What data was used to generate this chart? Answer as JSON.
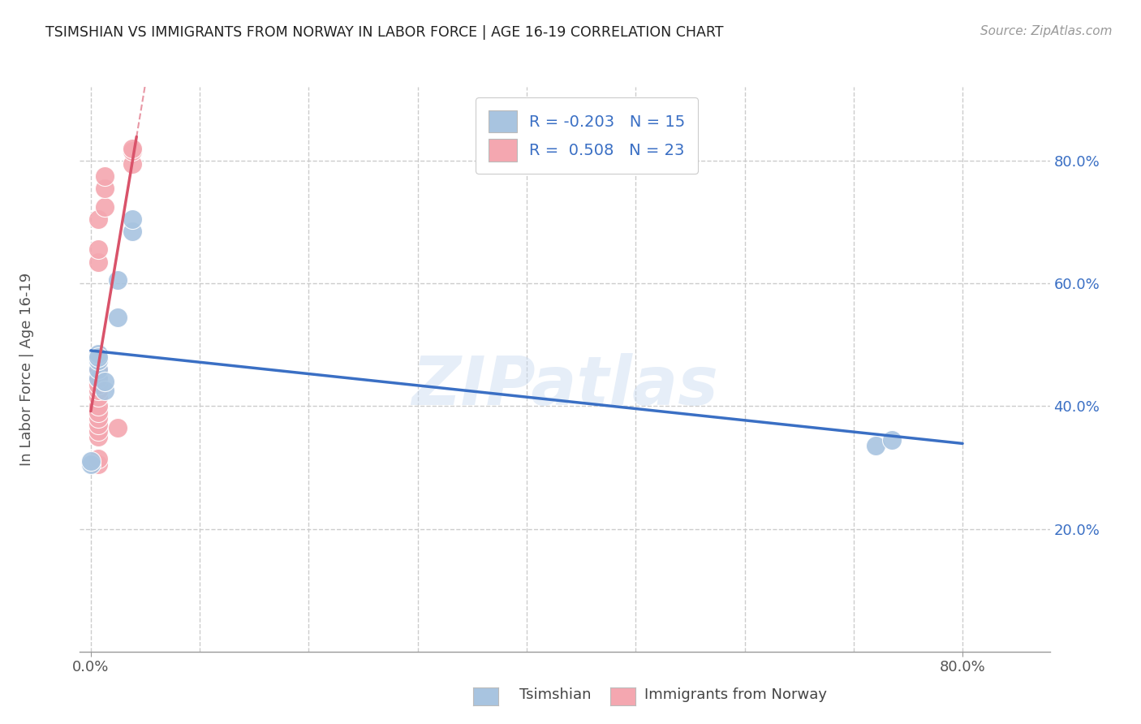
{
  "title": "TSIMSHIAN VS IMMIGRANTS FROM NORWAY IN LABOR FORCE | AGE 16-19 CORRELATION CHART",
  "source": "Source: ZipAtlas.com",
  "ylabel": "In Labor Force | Age 16-19",
  "x_tick_labels": [
    "0.0%",
    "80.0%"
  ],
  "x_tick_vals": [
    0.0,
    0.8
  ],
  "y_tick_labels_right": [
    "80.0%",
    "60.0%",
    "40.0%",
    "20.0%"
  ],
  "y_tick_vals_right": [
    0.8,
    0.6,
    0.4,
    0.2
  ],
  "xlim": [
    -0.01,
    0.88
  ],
  "ylim": [
    0.0,
    0.92
  ],
  "tsimshian_color": "#a8c4e0",
  "norway_color": "#f4a7b0",
  "tsimshian_line_color": "#3a6fc4",
  "norway_line_color": "#d9536a",
  "legend_R_tsimshian": "-0.203",
  "legend_N_tsimshian": "15",
  "legend_R_norway": "0.508",
  "legend_N_norway": "23",
  "tsimshian_x": [
    0.0,
    0.0,
    0.007,
    0.007,
    0.007,
    0.007,
    0.007,
    0.013,
    0.013,
    0.025,
    0.025,
    0.038,
    0.038,
    0.72,
    0.735
  ],
  "tsimshian_y": [
    0.305,
    0.31,
    0.445,
    0.46,
    0.475,
    0.485,
    0.48,
    0.425,
    0.44,
    0.605,
    0.545,
    0.685,
    0.705,
    0.335,
    0.345
  ],
  "norway_x": [
    0.007,
    0.007,
    0.007,
    0.007,
    0.007,
    0.007,
    0.007,
    0.007,
    0.007,
    0.007,
    0.007,
    0.007,
    0.007,
    0.007,
    0.007,
    0.007,
    0.013,
    0.013,
    0.013,
    0.025,
    0.038,
    0.038,
    0.038
  ],
  "norway_y": [
    0.305,
    0.315,
    0.35,
    0.36,
    0.37,
    0.38,
    0.39,
    0.4,
    0.415,
    0.425,
    0.435,
    0.445,
    0.46,
    0.635,
    0.655,
    0.705,
    0.725,
    0.755,
    0.775,
    0.365,
    0.795,
    0.815,
    0.82
  ],
  "watermark": "ZIPatlas",
  "grid_color": "#cccccc",
  "bg_color": "#ffffff"
}
